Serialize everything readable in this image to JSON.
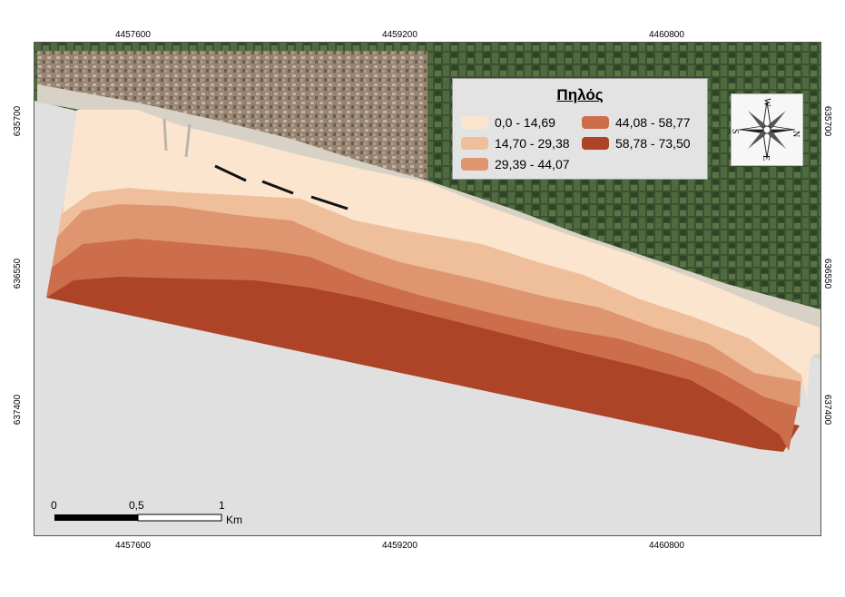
{
  "legend": {
    "title": "Πηλός",
    "classes": [
      {
        "label": "0,0 - 14,69",
        "color": "#fbe5cf"
      },
      {
        "label": "14,70 - 29,38",
        "color": "#efbf9c"
      },
      {
        "label": "29,39 - 44,07",
        "color": "#df9670"
      },
      {
        "label": "44,08 - 58,77",
        "color": "#cc6e4c"
      },
      {
        "label": "58,78 - 73,50",
        "color": "#ad4427"
      }
    ]
  },
  "grid": {
    "x_ticks": [
      "4457600",
      "4459200",
      "4460800"
    ],
    "y_ticks": [
      "635700",
      "636550",
      "637400"
    ]
  },
  "scale_bar": {
    "labels": [
      "0",
      "0,5",
      "1"
    ],
    "unit": "Km"
  },
  "north_arrow": {
    "icon": "compass-rose-icon",
    "letters": {
      "north": "N",
      "south": "S",
      "east": "E",
      "west": "W"
    }
  },
  "colors": {
    "background": "#e0e0e0",
    "urban": "#8a7464",
    "vegetation": "#3f5a34"
  }
}
